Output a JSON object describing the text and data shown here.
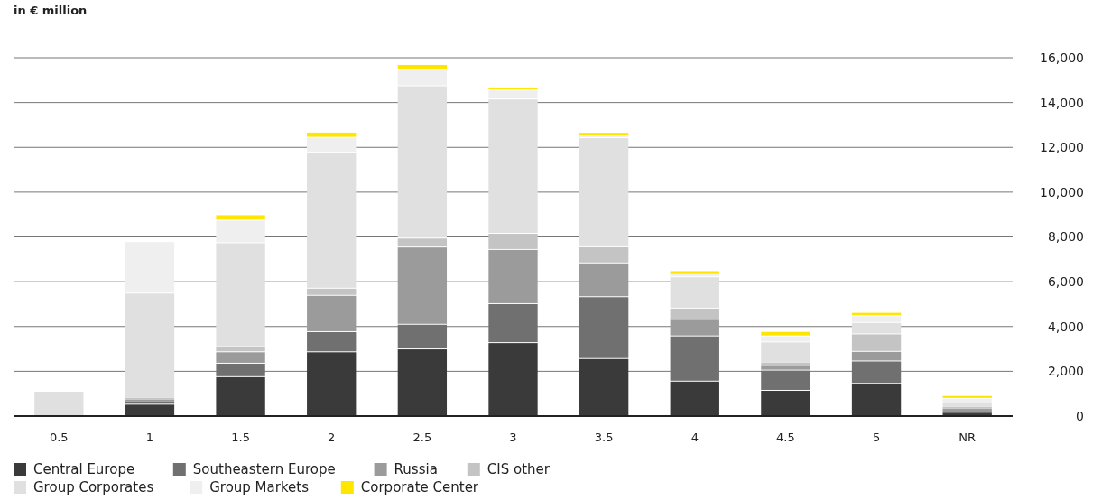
{
  "chart_data": {
    "type": "bar",
    "stacked": true,
    "ylabel": "in € million",
    "categories": [
      "0.5",
      "1",
      "1.5",
      "2",
      "2.5",
      "3",
      "3.5",
      "4",
      "4.5",
      "5",
      "NR"
    ],
    "ylim": [
      0,
      16000
    ],
    "yticks": [
      0,
      {
        "value": 2000,
        "label": "2,000"
      },
      {
        "value": 4000,
        "label": "4,000"
      },
      {
        "value": 6000,
        "label": "6,000"
      },
      {
        "value": 8000,
        "label": "8,000"
      },
      {
        "value": 10000,
        "label": "10,000"
      },
      {
        "value": 12000,
        "label": "12,000"
      },
      {
        "value": 14000,
        "label": "14,000"
      },
      {
        "value": 16000,
        "label": "16,000"
      }
    ],
    "grid": "y",
    "legend": "bottom",
    "series": [
      {
        "name": "Central Europe",
        "color": "#3a3a3a",
        "values": [
          0,
          550,
          1780,
          2890,
          3020,
          3300,
          2590,
          1580,
          1170,
          1480,
          120
        ]
      },
      {
        "name": "Southeastern Europe",
        "color": "#707070",
        "values": [
          0,
          100,
          600,
          900,
          1100,
          1740,
          2760,
          2020,
          900,
          1000,
          110
        ]
      },
      {
        "name": "Russia",
        "color": "#9b9b9b",
        "values": [
          0,
          80,
          510,
          1620,
          3450,
          2420,
          1510,
          740,
          180,
          430,
          110
        ]
      },
      {
        "name": "CIS other",
        "color": "#c4c4c4",
        "values": [
          0,
          80,
          230,
          320,
          400,
          720,
          720,
          500,
          140,
          780,
          70
        ]
      },
      {
        "name": "Group Corporates",
        "color": "#e0e0e0",
        "values": [
          1130,
          4700,
          4640,
          6070,
          6800,
          6000,
          4870,
          1400,
          940,
          510,
          190
        ]
      },
      {
        "name": "Group Markets",
        "color": "#efefef",
        "values": [
          0,
          2300,
          1010,
          670,
          720,
          400,
          80,
          100,
          270,
          300,
          210
        ]
      },
      {
        "name": "Corporate Center",
        "color": "#ffe600",
        "values": [
          0,
          0,
          200,
          230,
          190,
          70,
          120,
          130,
          160,
          110,
          90
        ]
      }
    ]
  }
}
